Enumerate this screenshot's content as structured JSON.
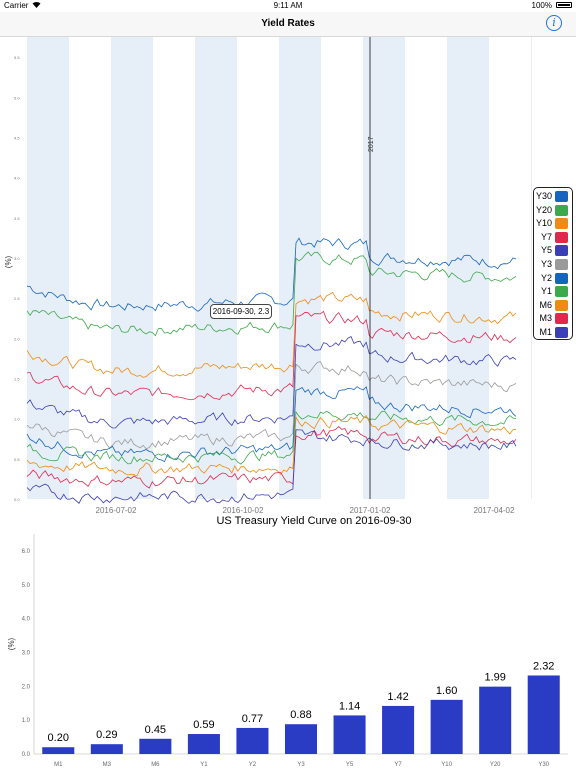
{
  "status_bar": {
    "carrier": "Carrier",
    "time": "9:11 AM",
    "battery": "100%"
  },
  "nav": {
    "title": "Yield Rates",
    "info_icon": "info-icon"
  },
  "top_chart": {
    "ylabel": "(%)",
    "xticks": [
      "2016-07-02",
      "2016-10-02",
      "2017-01-02",
      "2017-04-02"
    ],
    "marker_label": "2017",
    "tooltip": "2016-09-30, 2.3",
    "yticks": [
      "0.0",
      "0.5",
      "1.0",
      "1.5",
      "2.0",
      "2.5",
      "3.0",
      "3.5",
      "4.0",
      "4.5",
      "5.0",
      "5.5"
    ],
    "legend": [
      {
        "label": "Y30",
        "color": "#1565c0"
      },
      {
        "label": "Y20",
        "color": "#3caa4a"
      },
      {
        "label": "Y10",
        "color": "#f08a12"
      },
      {
        "label": "Y7",
        "color": "#e0284f"
      },
      {
        "label": "Y5",
        "color": "#3a3fb8"
      },
      {
        "label": "Y3",
        "color": "#9a9a9a"
      },
      {
        "label": "Y2",
        "color": "#1565c0"
      },
      {
        "label": "Y1",
        "color": "#3caa4a"
      },
      {
        "label": "M6",
        "color": "#f08a12"
      },
      {
        "label": "M3",
        "color": "#e0284f"
      },
      {
        "label": "M1",
        "color": "#3a3fb8"
      }
    ]
  },
  "chart_data": {
    "type": "bar",
    "title": "US Treasury Yield Curve on 2016-09-30",
    "ylabel": "(%)",
    "xlabel": "",
    "categories": [
      "M1",
      "M3",
      "M6",
      "Y1",
      "Y2",
      "Y3",
      "Y5",
      "Y7",
      "Y10",
      "Y20",
      "Y30"
    ],
    "values": [
      0.2,
      0.29,
      0.45,
      0.59,
      0.77,
      0.88,
      1.14,
      1.42,
      1.6,
      1.99,
      2.32
    ],
    "value_labels": [
      "0.20",
      "0.29",
      "0.45",
      "0.59",
      "0.77",
      "0.88",
      "1.14",
      "1.42",
      "1.60",
      "1.99",
      "2.32"
    ],
    "yticks": [
      "0.0",
      "1.0",
      "2.0",
      "3.0",
      "4.0",
      "5.0",
      "6.0"
    ],
    "ylim": [
      0,
      6.5
    ],
    "grid": false,
    "bar_color": "#2a3cc4"
  }
}
